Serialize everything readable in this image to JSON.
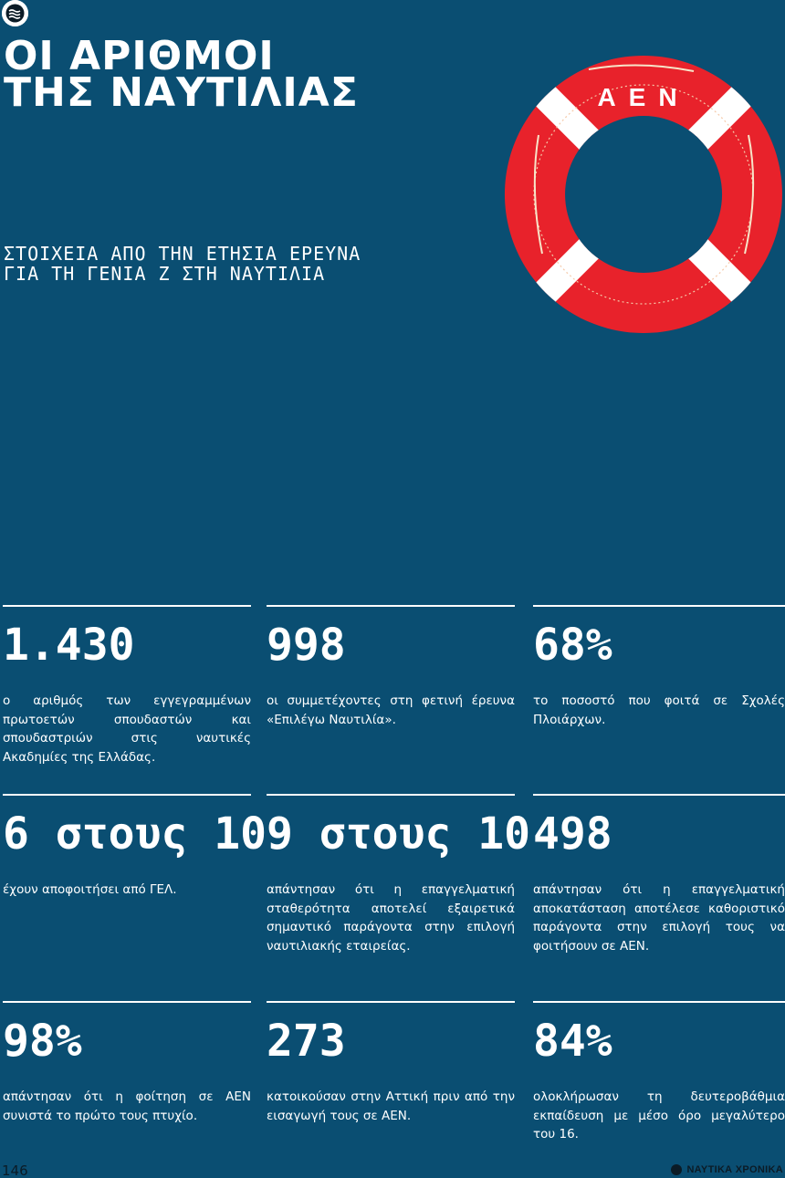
{
  "header": {
    "title_line1": "ΟΙ ΑΡΙΘΜΟΙ",
    "title_line2": "ΤΗΣ ΝΑΥΤΙΛΙΑΣ",
    "subtitle_line1": "ΣΤΟΙΧΕΙΑ ΑΠΟ ΤΗΝ ΕΤΗΣΙΑ ΕΡΕΥΝΑ",
    "subtitle_line2": "ΓΙΑ ΤΗ ΓΕΝΙΑ Ζ ΣΤΗ ΝΑΥΤΙΛΙΑ",
    "logo_icon": "waves-logo-icon"
  },
  "lifebuoy": {
    "text": "ΑΕΝ",
    "ring_color": "#e8222b",
    "band_color": "#ffffff"
  },
  "stats": [
    {
      "value": "1.430",
      "text": "ο αριθμός των εγγεγραμμένων πρωτοετών σπουδαστών και σπουδαστριών στις ναυτικές Ακαδημίες της Ελλάδας."
    },
    {
      "value": "998",
      "text": "οι συμμετέχοντες στη φετινή έρευνα «Επιλέγω Ναυτιλία»."
    },
    {
      "value": "68%",
      "text": "το ποσοστό που φοιτά σε Σχολές Πλοιάρχων."
    },
    {
      "value": "6 στους 10",
      "text": "έχουν αποφοιτήσει από ΓΕΛ."
    },
    {
      "value": "9 στους 10",
      "text": "απάντησαν ότι η επαγγελματική σταθερότητα αποτελεί εξαιρετικά σημαντικό παράγοντα στην επιλογή ναυτιλιακής εταιρείας."
    },
    {
      "value": "498",
      "text": "απάντησαν ότι η επαγγελματική αποκατάσταση αποτέλεσε καθοριστικό παράγοντα στην επιλογή τους να φοιτήσουν σε ΑΕΝ."
    },
    {
      "value": "98%",
      "text": "απάντησαν ότι η φοίτηση σε ΑΕΝ συνιστά το πρώτο τους πτυχίο."
    },
    {
      "value": "273",
      "text": "κατοικούσαν στην Αττική πριν από την εισαγωγή τους σε ΑΕΝ."
    },
    {
      "value": "84%",
      "text": "ολοκλήρωσαν τη δευτεροβάθμια εκπαίδευση με μέσο όρο μεγαλύτερο του 16."
    }
  ],
  "footer": {
    "page_number": "146",
    "brand": "ΝΑΥΤΙΚΑ ΧΡΟΝΙΚΑ"
  },
  "colors": {
    "background": "#0a4e72",
    "text": "#ffffff"
  }
}
